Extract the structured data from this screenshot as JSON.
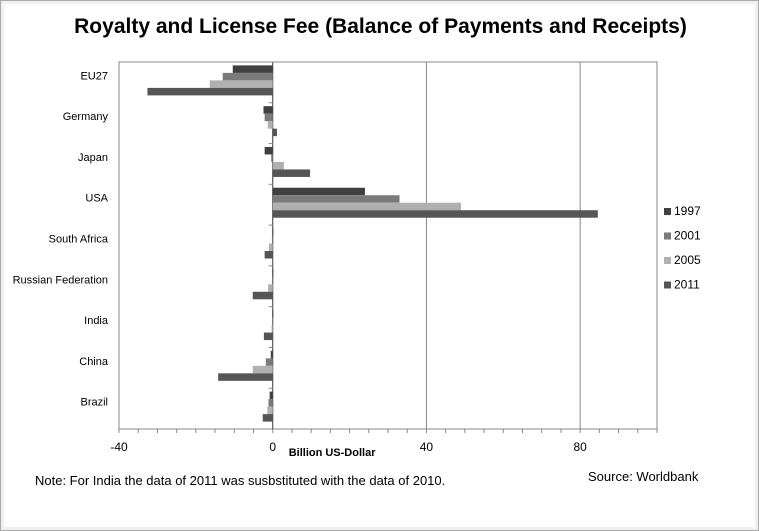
{
  "chart_data": {
    "type": "bar",
    "orientation": "horizontal",
    "title": "Royalty and License Fee (Balance of Payments and Receipts)",
    "xlabel": "Billion US-Dollar",
    "ylabel": "",
    "xlim": [
      -40,
      100
    ],
    "xticks": [
      -40,
      0,
      40,
      80
    ],
    "grid": true,
    "legend": "right",
    "categories": [
      "EU27",
      "Germany",
      "Japan",
      "USA",
      "South Africa",
      "Russian Federation",
      "India",
      "China",
      "Brazil"
    ],
    "series": [
      {
        "name": "1997",
        "color": "#404040",
        "values": [
          -10.4,
          -2.4,
          -2.1,
          24,
          0,
          0,
          0,
          -0.5,
          -0.8
        ]
      },
      {
        "name": "2001",
        "color": "#7a7a7a",
        "values": [
          -13,
          -2.1,
          -0.4,
          33,
          -0.2,
          0.1,
          -0.1,
          -1.8,
          -1.1
        ]
      },
      {
        "name": "2005",
        "color": "#b0b0b0",
        "values": [
          -16.4,
          -1.3,
          2.9,
          49,
          -1,
          -1.2,
          -0.3,
          -5.2,
          -1.4
        ]
      },
      {
        "name": "2011",
        "color": "#555555",
        "values": [
          -32.6,
          1.1,
          9.7,
          84.6,
          -2.1,
          -5.2,
          -2.3,
          -14.2,
          -2.6
        ]
      }
    ],
    "note": "Note:  For India the data of 2011  was susbstituted with the data of 2010.",
    "source": "Source: Worldbank"
  }
}
